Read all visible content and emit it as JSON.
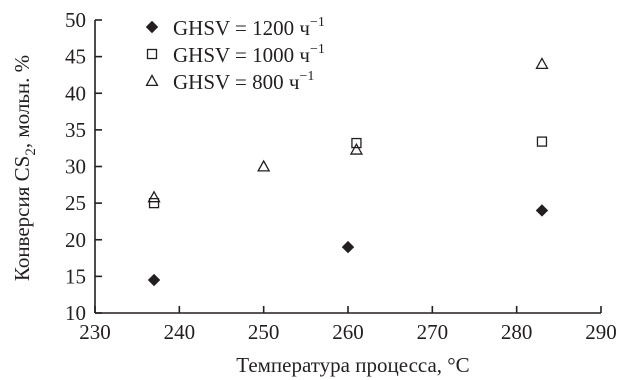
{
  "chart_data": {
    "type": "scatter",
    "xlabel": "Температура процесса, °С",
    "ylabel_parts": [
      "Конверсия CS",
      "2",
      ", мольн. %"
    ],
    "xlim": [
      230,
      290
    ],
    "ylim": [
      10,
      50
    ],
    "x_ticks": [
      "230",
      "240",
      "250",
      "260",
      "270",
      "280",
      "290"
    ],
    "y_ticks": [
      "10",
      "15",
      "20",
      "25",
      "30",
      "35",
      "40",
      "45",
      "50"
    ],
    "grid": false,
    "legend_position": "top-left",
    "series": [
      {
        "name": "GHSV = 1200 ч",
        "name_sup": "−1",
        "marker": "diamond-filled",
        "points": [
          {
            "x": 237,
            "y": 14.5
          },
          {
            "x": 260,
            "y": 19.0
          },
          {
            "x": 283,
            "y": 24.0
          }
        ]
      },
      {
        "name": "GHSV = 1000 ч",
        "name_sup": "−1",
        "marker": "square-open",
        "points": [
          {
            "x": 237,
            "y": 25.0
          },
          {
            "x": 261,
            "y": 33.2
          },
          {
            "x": 283,
            "y": 33.4
          }
        ]
      },
      {
        "name": "GHSV = 800 ч",
        "name_sup": "−1",
        "marker": "triangle-open",
        "points": [
          {
            "x": 237,
            "y": 25.8
          },
          {
            "x": 250,
            "y": 30.0
          },
          {
            "x": 261,
            "y": 32.3
          },
          {
            "x": 283,
            "y": 44.0
          }
        ]
      }
    ]
  },
  "colors": {
    "ink": "#231f20"
  }
}
